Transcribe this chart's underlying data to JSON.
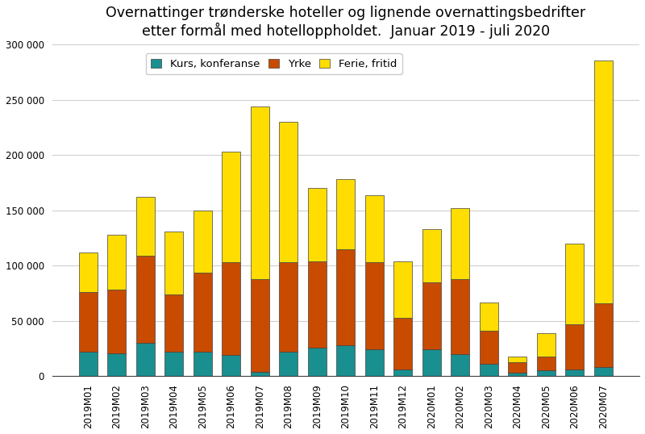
{
  "categories": [
    "2019M01",
    "2019M02",
    "2019M03",
    "2019M04",
    "2019M05",
    "2019M06",
    "2019M07",
    "2019M08",
    "2019M09",
    "2019M10",
    "2019M11",
    "2019M12",
    "2020M01",
    "2020M02",
    "2020M03",
    "2020M04",
    "2020M05",
    "2020M06",
    "2020M07"
  ],
  "kurs_konferanse": [
    22000,
    21000,
    30000,
    22000,
    22000,
    19000,
    4000,
    22000,
    26000,
    28000,
    24000,
    6000,
    24000,
    20000,
    11000,
    3000,
    5000,
    6000,
    8000
  ],
  "yrke": [
    54000,
    57000,
    79000,
    52000,
    72000,
    84000,
    84000,
    81000,
    78000,
    87000,
    79000,
    47000,
    61000,
    68000,
    30000,
    10000,
    13000,
    41000,
    58000
  ],
  "ferie_fritid": [
    36000,
    50000,
    53000,
    57000,
    56000,
    100000,
    156000,
    127000,
    66000,
    63000,
    61000,
    51000,
    48000,
    64000,
    26000,
    5000,
    21000,
    73000,
    220000
  ],
  "colors": {
    "kurs_konferanse": "#1a8f8f",
    "yrke": "#c84b00",
    "ferie_fritid": "#ffdd00"
  },
  "title_line1": "Overnattinger trønderske hoteller og lignende overnattingsbedrifter",
  "title_line2": "etter formål med hotelloppholdet.  Januar 2019 - juli 2020",
  "legend_labels": [
    "Kurs, konferanse",
    "Yrke",
    "Ferie, fritid"
  ],
  "ylim": [
    0,
    300000
  ],
  "yticks": [
    0,
    50000,
    100000,
    150000,
    200000,
    250000,
    300000
  ],
  "ytick_labels": [
    "0",
    "50 000",
    "100 000",
    "150 000",
    "200 000",
    "250 000",
    "300 000"
  ],
  "background_color": "#ffffff",
  "grid_color": "#d0d0d0",
  "title_fontsize": 12.5,
  "tick_fontsize": 8.5,
  "legend_fontsize": 9.5,
  "bar_edge_color": "#404040",
  "bar_edge_width": 0.5
}
